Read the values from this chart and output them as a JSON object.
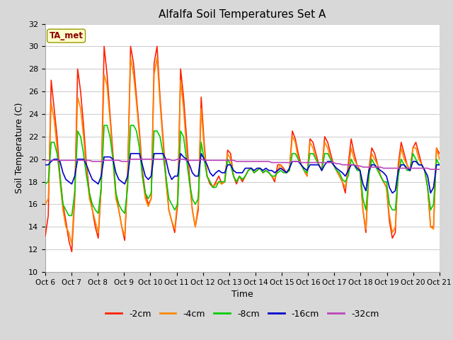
{
  "title": "Alfalfa Soil Temperatures Set A",
  "xlabel": "Time",
  "ylabel": "Soil Temperature (C)",
  "ylim": [
    10,
    32
  ],
  "yticks": [
    10,
    12,
    14,
    16,
    18,
    20,
    22,
    24,
    26,
    28,
    30,
    32
  ],
  "xtick_labels": [
    "Oct 6",
    "Oct 7",
    "Oct 8",
    "Oct 9",
    "Oct 10",
    "Oct 11",
    "Oct 12",
    "Oct 13",
    "Oct 14",
    "Oct 15",
    "Oct 16",
    "Oct 17",
    "Oct 18",
    "Oct 19",
    "Oct 20",
    "Oct 21"
  ],
  "fig_bg_color": "#d8d8d8",
  "plot_bg_color": "#ffffff",
  "grid_color": "#d0d0d0",
  "annotation_text": "TA_met",
  "annotation_box_color": "#ffffcc",
  "annotation_text_color": "#8b0000",
  "annotation_border_color": "#999900",
  "series_colors": [
    "#ff2200",
    "#ff8800",
    "#00cc00",
    "#0000cc",
    "#bb44bb"
  ],
  "series_labels": [
    "-2cm",
    "-4cm",
    "-8cm",
    "-16cm",
    "-32cm"
  ],
  "series_lw": [
    1.2,
    1.2,
    1.2,
    1.2,
    1.2
  ],
  "t_2cm": [
    13.2,
    15.0,
    27.0,
    24.5,
    22.0,
    18.5,
    16.0,
    14.5,
    12.8,
    11.8,
    16.5,
    28.0,
    26.0,
    23.0,
    19.5,
    17.0,
    15.5,
    14.0,
    13.0,
    17.5,
    30.0,
    27.5,
    24.0,
    20.5,
    17.0,
    15.5,
    14.0,
    12.8,
    18.5,
    30.0,
    28.5,
    25.5,
    22.5,
    19.0,
    17.0,
    16.0,
    16.5,
    28.5,
    30.0,
    25.5,
    22.0,
    18.5,
    15.5,
    14.5,
    13.5,
    16.0,
    28.0,
    25.5,
    22.0,
    18.5,
    15.5,
    14.0,
    15.5,
    25.5,
    21.5,
    18.5,
    17.8,
    17.5,
    18.0,
    18.5,
    17.8,
    18.0,
    20.8,
    20.5,
    18.5,
    17.8,
    18.5,
    18.0,
    18.5,
    19.0,
    19.2,
    18.8,
    19.0,
    19.2,
    18.8,
    19.0,
    18.8,
    18.5,
    18.0,
    19.5,
    19.5,
    19.2,
    18.8,
    19.0,
    22.5,
    21.8,
    20.5,
    19.5,
    19.0,
    18.5,
    21.8,
    21.5,
    20.5,
    19.5,
    19.0,
    22.0,
    21.5,
    20.5,
    19.5,
    19.0,
    18.5,
    18.0,
    17.0,
    19.5,
    21.8,
    20.5,
    19.5,
    19.0,
    15.5,
    13.5,
    19.0,
    21.0,
    20.5,
    19.5,
    18.5,
    18.0,
    17.5,
    14.5,
    13.0,
    13.5,
    19.5,
    21.5,
    20.5,
    19.5,
    19.0,
    21.0,
    21.5,
    20.5,
    19.5,
    19.0,
    17.5,
    14.0,
    14.0,
    21.0,
    20.5
  ],
  "t_4cm": [
    16.0,
    16.5,
    25.0,
    23.5,
    21.0,
    18.0,
    15.5,
    14.0,
    13.5,
    12.5,
    17.0,
    25.5,
    24.5,
    22.0,
    19.0,
    16.5,
    15.5,
    14.5,
    13.5,
    17.5,
    27.5,
    26.5,
    23.5,
    20.0,
    16.5,
    15.5,
    14.0,
    13.2,
    18.5,
    29.0,
    27.5,
    25.0,
    22.0,
    18.5,
    16.5,
    15.8,
    16.5,
    27.5,
    29.0,
    25.0,
    21.5,
    18.0,
    15.5,
    14.5,
    13.8,
    16.5,
    27.0,
    24.5,
    21.0,
    18.0,
    15.5,
    14.0,
    16.0,
    24.5,
    21.0,
    18.5,
    18.0,
    17.5,
    17.8,
    18.0,
    17.8,
    18.0,
    20.5,
    20.0,
    18.5,
    18.0,
    18.5,
    18.2,
    18.5,
    19.0,
    19.2,
    18.8,
    19.0,
    19.2,
    18.8,
    19.0,
    18.8,
    18.5,
    18.2,
    19.0,
    19.5,
    19.0,
    18.8,
    19.0,
    22.0,
    21.5,
    20.0,
    19.5,
    19.0,
    18.5,
    21.5,
    21.0,
    20.0,
    19.5,
    19.0,
    21.5,
    21.0,
    20.0,
    19.5,
    19.0,
    18.5,
    18.0,
    17.5,
    19.0,
    21.0,
    20.0,
    19.5,
    19.0,
    15.5,
    13.8,
    18.5,
    20.5,
    20.0,
    19.5,
    18.5,
    18.0,
    17.5,
    15.0,
    13.5,
    14.0,
    19.0,
    21.0,
    20.0,
    19.5,
    19.0,
    21.0,
    21.0,
    20.0,
    19.5,
    19.0,
    17.5,
    14.0,
    13.8,
    21.0,
    20.0
  ],
  "t_8cm": [
    17.8,
    18.0,
    21.5,
    21.5,
    20.5,
    18.5,
    16.0,
    15.5,
    15.0,
    15.0,
    17.0,
    22.5,
    22.0,
    20.5,
    18.5,
    17.0,
    16.0,
    15.5,
    15.2,
    17.5,
    23.0,
    23.0,
    22.0,
    20.0,
    17.0,
    16.0,
    15.5,
    15.2,
    17.5,
    23.0,
    23.0,
    22.5,
    21.0,
    18.5,
    17.0,
    16.5,
    17.0,
    22.5,
    22.5,
    22.0,
    20.5,
    18.5,
    16.5,
    16.0,
    15.5,
    16.0,
    22.5,
    22.0,
    20.0,
    18.0,
    16.5,
    16.0,
    16.5,
    21.5,
    20.0,
    18.5,
    18.0,
    17.5,
    17.5,
    18.0,
    18.0,
    18.0,
    20.0,
    19.5,
    18.5,
    18.0,
    18.5,
    18.2,
    18.5,
    19.0,
    19.2,
    18.8,
    19.0,
    19.2,
    18.8,
    19.0,
    18.8,
    18.5,
    18.5,
    18.8,
    19.0,
    18.8,
    18.8,
    19.0,
    20.5,
    20.5,
    20.0,
    19.5,
    19.0,
    18.8,
    20.5,
    20.5,
    20.0,
    19.5,
    19.0,
    20.5,
    20.5,
    20.0,
    19.5,
    19.0,
    18.8,
    18.2,
    18.0,
    18.5,
    20.0,
    19.5,
    19.0,
    19.0,
    16.5,
    15.5,
    18.5,
    20.0,
    19.5,
    19.0,
    18.5,
    18.0,
    18.0,
    16.0,
    15.5,
    15.5,
    18.5,
    20.0,
    19.5,
    19.0,
    19.0,
    20.5,
    20.0,
    19.5,
    19.5,
    19.0,
    17.5,
    15.5,
    16.0,
    20.0,
    19.5
  ],
  "t_16cm": [
    19.5,
    19.5,
    19.8,
    20.0,
    20.0,
    19.8,
    18.8,
    18.2,
    18.0,
    17.8,
    18.5,
    20.0,
    20.0,
    20.0,
    19.5,
    18.8,
    18.2,
    18.0,
    17.8,
    18.5,
    20.2,
    20.2,
    20.2,
    20.0,
    18.8,
    18.2,
    18.0,
    17.8,
    18.5,
    20.5,
    20.5,
    20.5,
    20.5,
    19.5,
    18.5,
    18.2,
    18.5,
    20.5,
    20.5,
    20.5,
    20.5,
    20.0,
    18.8,
    18.2,
    18.5,
    18.5,
    20.5,
    20.2,
    20.0,
    19.5,
    18.8,
    18.5,
    18.5,
    20.5,
    20.0,
    19.5,
    18.8,
    18.5,
    18.8,
    19.0,
    18.8,
    18.8,
    19.5,
    19.5,
    19.0,
    18.8,
    18.8,
    18.8,
    19.2,
    19.2,
    19.2,
    19.0,
    19.2,
    19.2,
    19.0,
    19.2,
    19.0,
    19.0,
    18.8,
    19.0,
    19.2,
    19.0,
    18.8,
    19.2,
    19.8,
    19.8,
    19.8,
    19.5,
    19.2,
    19.0,
    19.5,
    19.5,
    19.5,
    19.5,
    19.0,
    19.5,
    19.8,
    19.8,
    19.5,
    19.2,
    19.0,
    18.8,
    18.5,
    19.0,
    19.5,
    19.5,
    19.2,
    19.0,
    17.8,
    17.2,
    19.0,
    19.5,
    19.5,
    19.2,
    19.0,
    18.8,
    18.5,
    17.5,
    17.0,
    17.2,
    19.0,
    19.5,
    19.5,
    19.2,
    19.0,
    19.8,
    19.8,
    19.5,
    19.5,
    19.0,
    18.5,
    17.0,
    17.5,
    19.5,
    19.5
  ],
  "t_32cm": [
    19.9,
    19.9,
    19.9,
    19.9,
    19.9,
    19.9,
    19.9,
    19.9,
    19.9,
    19.9,
    19.9,
    19.9,
    19.9,
    19.9,
    19.9,
    19.9,
    19.8,
    19.8,
    19.8,
    19.8,
    19.9,
    19.9,
    19.9,
    19.9,
    19.9,
    19.9,
    19.8,
    19.8,
    19.8,
    20.0,
    20.0,
    20.0,
    20.0,
    20.0,
    20.0,
    20.0,
    20.0,
    20.0,
    20.0,
    20.0,
    20.0,
    20.0,
    20.0,
    19.9,
    19.9,
    20.0,
    20.0,
    20.0,
    19.9,
    19.9,
    19.9,
    19.9,
    19.9,
    20.0,
    19.9,
    19.9,
    19.9,
    19.9,
    19.9,
    19.9,
    19.9,
    19.9,
    19.9,
    19.9,
    19.9,
    19.8,
    19.8,
    19.8,
    19.8,
    19.8,
    19.8,
    19.8,
    19.8,
    19.8,
    19.8,
    19.8,
    19.8,
    19.7,
    19.7,
    19.7,
    19.7,
    19.7,
    19.7,
    19.7,
    19.8,
    19.8,
    19.8,
    19.7,
    19.7,
    19.7,
    19.7,
    19.7,
    19.7,
    19.7,
    19.7,
    19.7,
    19.7,
    19.7,
    19.7,
    19.6,
    19.6,
    19.5,
    19.5,
    19.5,
    19.5,
    19.5,
    19.4,
    19.4,
    19.3,
    19.3,
    19.3,
    19.3,
    19.3,
    19.3,
    19.3,
    19.2,
    19.2,
    19.2,
    19.2,
    19.2,
    19.2,
    19.2,
    19.2,
    19.2,
    19.2,
    19.2,
    19.2,
    19.2,
    19.2,
    19.2,
    19.2,
    19.1,
    19.1,
    19.1,
    19.1
  ]
}
